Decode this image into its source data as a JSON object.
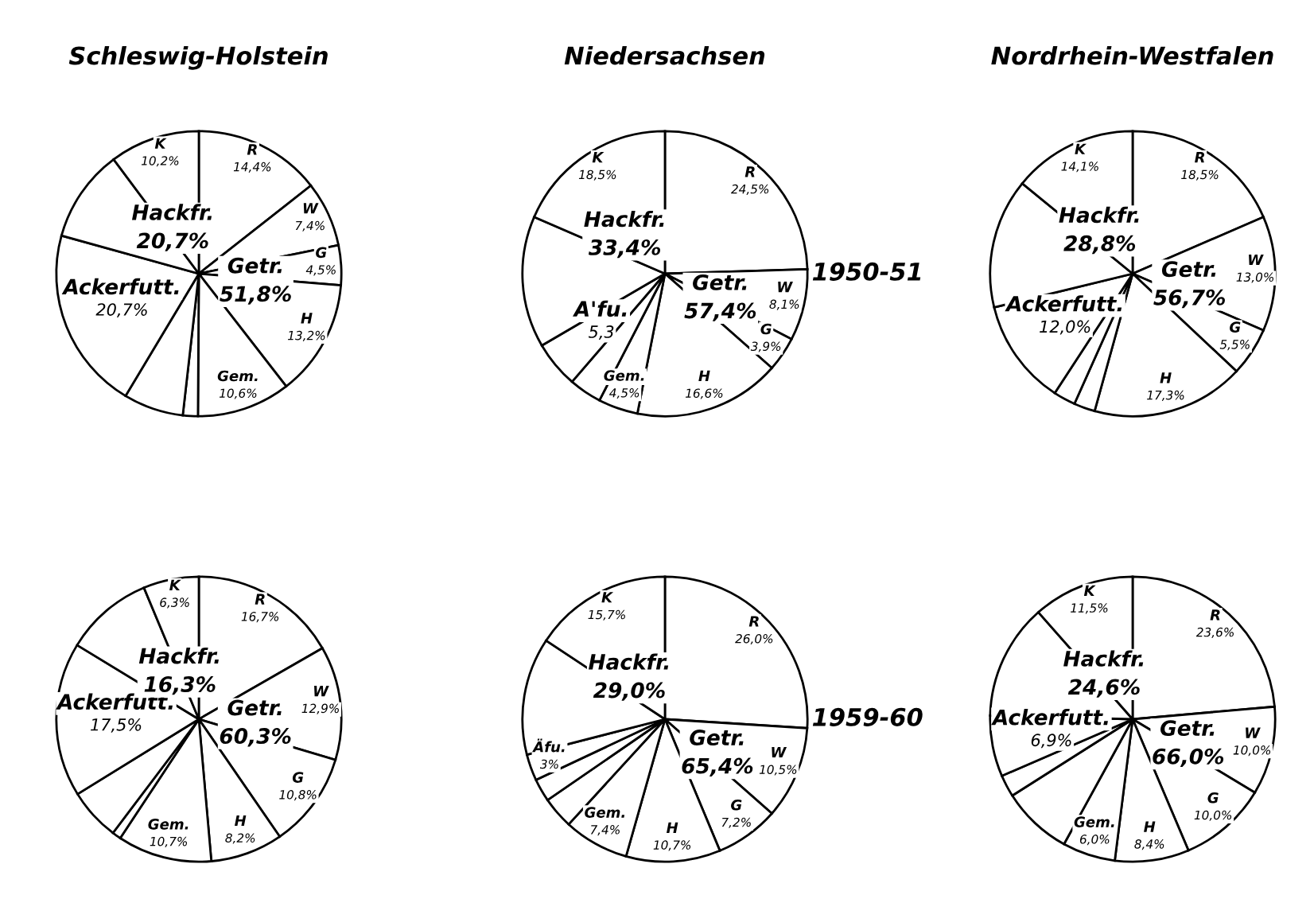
{
  "chart_data": [
    {
      "type": "pie",
      "title": "Schleswig-Holstein",
      "color": "#ffffff",
      "categories": [
        "R",
        "W",
        "G",
        "H",
        "Gem.",
        null,
        null,
        "Ackerfutt.",
        null,
        "K"
      ],
      "values": [
        14.4,
        7.4,
        4.5,
        13.2,
        10.6,
        1.7,
        6.8,
        20.7,
        10.5,
        10.2
      ],
      "value_labels": [
        "14,4%",
        "7,4%",
        "4,5%",
        "13,2%",
        "10,6%",
        null,
        null,
        "20,7%",
        null,
        "10,2%"
      ],
      "annotations": [
        {
          "text": "Getr.\n51,8%",
          "x": "G"
        },
        {
          "text": "Hackfr.\n20,7%",
          "x": "K"
        }
      ]
    },
    {
      "type": "pie",
      "title": "Niedersachsen",
      "color": "#ffffff",
      "categories": [
        "R",
        "W",
        "G",
        "H",
        "Gem.",
        null,
        "A'fu.",
        null,
        "K"
      ],
      "values": [
        24.5,
        8.1,
        3.9,
        16.6,
        4.5,
        3.7,
        5.3,
        14.9,
        18.5
      ],
      "value_labels": [
        "24,5%",
        "8,1%",
        "3,9%",
        "16,6%",
        "4,5%",
        null,
        "5,3",
        null,
        "18,5%"
      ],
      "annotations": [
        {
          "text": "Getr.\n57,4%",
          "x": "W"
        },
        {
          "text": "Hackfr.\n33,4%",
          "x": "K"
        },
        "1950-51"
      ]
    },
    {
      "type": "pie",
      "title": "Nordrhein-Westfalen",
      "color": "#ffffff",
      "categories": [
        "R",
        "W",
        "G",
        "H",
        null,
        null,
        "Ackerfutt.",
        null,
        "K"
      ],
      "values": [
        18.5,
        13.0,
        5.5,
        17.3,
        2.4,
        2.5,
        12.0,
        14.7,
        14.1
      ],
      "value_labels": [
        "18,5%",
        "13,0%",
        "5,5%",
        "17,3%",
        null,
        null,
        "12,0%",
        null,
        "14,1%"
      ],
      "annotations": [
        {
          "text": "Getr.\n56,7%",
          "x": "W"
        },
        {
          "text": "Hackfr.\n28,8%",
          "x": "K"
        }
      ]
    },
    {
      "type": "pie",
      "color": "#ffffff",
      "categories": [
        "R",
        "W",
        "G",
        "H",
        "Gem.",
        null,
        null,
        "Ackerfutt.",
        null,
        "K"
      ],
      "values": [
        16.7,
        12.9,
        10.8,
        8.2,
        10.7,
        1.0,
        5.9,
        17.5,
        10.0,
        6.3
      ],
      "value_labels": [
        "16,7%",
        "12,9%",
        "10,8%",
        "8,2%",
        "10,7%",
        null,
        null,
        "17,5%",
        null,
        "6,3%"
      ],
      "annotations": [
        {
          "text": "Getr.\n60,3%",
          "x": "W"
        },
        {
          "text": "Hackfr.\n16,3%",
          "x": "K"
        }
      ]
    },
    {
      "type": "pie",
      "color": "#ffffff",
      "categories": [
        "R",
        "W",
        "G",
        "H",
        "Gem.",
        null,
        null,
        "Äfu.",
        null,
        "K"
      ],
      "values": [
        26.0,
        10.5,
        7.2,
        10.7,
        7.4,
        3.6,
        2.6,
        3.0,
        13.3,
        15.7
      ],
      "value_labels": [
        "26,0%",
        "10,5%",
        "7,2%",
        "10,7%",
        "7,4%",
        null,
        null,
        "3%",
        null,
        "15,7%"
      ],
      "annotations": [
        {
          "text": "Getr.\n65,4%",
          "x": "W"
        },
        {
          "text": "Hackfr.\n29,0%",
          "x": "K"
        },
        "1959-60"
      ]
    },
    {
      "type": "pie",
      "color": "#ffffff",
      "categories": [
        "R",
        "W",
        "G",
        "H",
        "Gem.",
        null,
        null,
        "Ackerfutt.",
        null,
        "K"
      ],
      "values": [
        23.6,
        10.0,
        10.0,
        8.4,
        6.0,
        8.0,
        2.5,
        6.9,
        13.1,
        11.5
      ],
      "value_labels": [
        "23,6%",
        "10,0%",
        "10,0%",
        "8,4%",
        "6,0%",
        null,
        null,
        "6,9%",
        null,
        "11,5%"
      ],
      "annotations": [
        {
          "text": "Getr.\n66,0%",
          "x": "W"
        },
        {
          "text": "Hackfr.\n24,6%",
          "x": "K"
        }
      ]
    }
  ]
}
